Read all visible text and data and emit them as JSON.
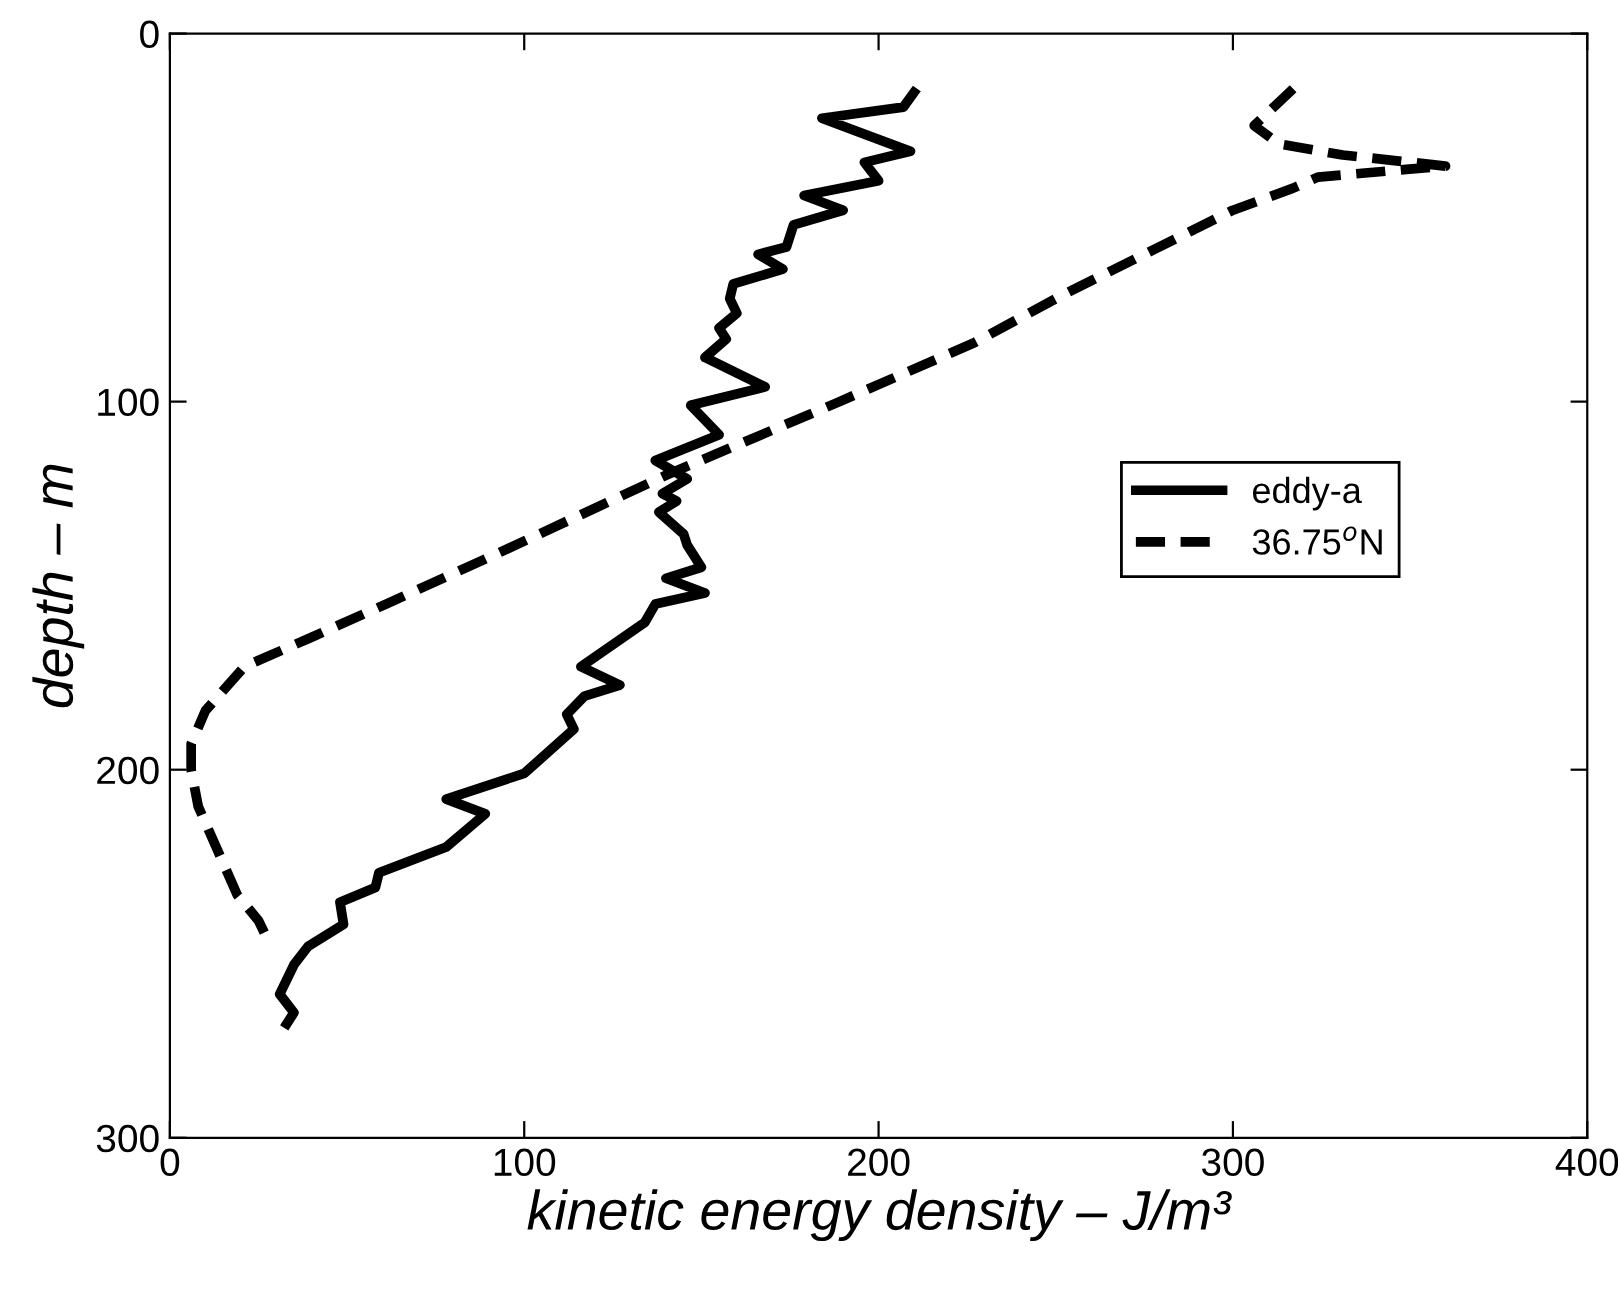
{
  "chart_data": {
    "type": "line",
    "xlabel": "kinetic energy density – J/m³",
    "ylabel": "depth – m",
    "xlim": [
      0,
      400
    ],
    "xticks": [
      0,
      100,
      200,
      300,
      400
    ],
    "ylim": [
      300,
      0
    ],
    "yticks": [
      0,
      100,
      200,
      300
    ],
    "grid": false,
    "legend": "right",
    "series": [
      {
        "name": "eddy-a",
        "color": "#000000",
        "line_style": "solid",
        "x": [
          210,
          207,
          184,
          209,
          196,
          200,
          179,
          190,
          176,
          174,
          166,
          173,
          159,
          158,
          160,
          155,
          157,
          151,
          168,
          147,
          155,
          137,
          146,
          139,
          143,
          138,
          145,
          146,
          150,
          140,
          151,
          137,
          134,
          128,
          116,
          127,
          117,
          112,
          114,
          100,
          78,
          89,
          78,
          59,
          58,
          48,
          49,
          39,
          35,
          31,
          35,
          33
        ],
        "values": [
          16,
          20,
          23,
          32,
          35,
          40,
          44,
          48,
          52,
          58,
          60,
          64,
          68,
          72,
          76,
          80,
          83,
          88,
          96,
          101,
          109,
          116,
          121,
          125,
          127,
          130,
          136,
          139,
          145,
          148,
          152,
          155,
          160,
          164,
          172,
          177,
          180,
          185,
          189,
          201,
          208,
          212,
          221,
          228,
          232,
          236,
          242,
          248,
          253,
          261,
          266,
          269
        ]
      },
      {
        "name": "36.75$^{o}$N",
        "color": "#000000",
        "line_style": "dashed",
        "x": [
          317,
          306,
          313,
          331,
          360,
          324,
          317,
          300,
          252,
          227,
          189,
          140,
          93,
          61,
          40,
          21,
          10,
          6,
          6,
          8,
          19,
          25,
          28
        ],
        "values": [
          15,
          25,
          30,
          33,
          36,
          39,
          42,
          48,
          71,
          84,
          100,
          120,
          141,
          155,
          164,
          172,
          184,
          193,
          200,
          210,
          234,
          241,
          247
        ]
      }
    ]
  }
}
